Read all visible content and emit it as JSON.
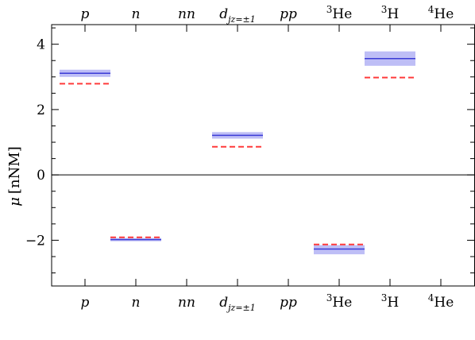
{
  "chart_data": {
    "type": "scatter",
    "title": "",
    "xlabel": "",
    "ylabel": {
      "symbol": "μ",
      "unit": "[nNM]"
    },
    "ylim": [
      -3.4,
      4.6
    ],
    "yticks": [
      4,
      2,
      0,
      -2
    ],
    "ytick_labels": [
      "4",
      "2",
      "0",
      "−2"
    ],
    "zero_line": true,
    "grid": false,
    "legend": "none",
    "categories": [
      {
        "key": "p",
        "label": "p"
      },
      {
        "key": "n",
        "label": "n"
      },
      {
        "key": "nn",
        "label": "nn"
      },
      {
        "key": "d",
        "label": "d",
        "subscript": "jz=±1"
      },
      {
        "key": "pp",
        "label": "pp"
      },
      {
        "key": "3He",
        "label": "He",
        "superscript": "3"
      },
      {
        "key": "3H",
        "label": "H",
        "superscript": "3"
      },
      {
        "key": "4He",
        "label": "He",
        "superscript": "4"
      }
    ],
    "series": [
      {
        "style": "solid blue line with shaded uncertainty band",
        "color": "#3b3bd6",
        "band_color": "#b3b3f5",
        "points": [
          {
            "category": "p",
            "value": 3.11,
            "low": 3.0,
            "high": 3.22
          },
          {
            "category": "n",
            "value": -1.98,
            "low": -2.03,
            "high": -1.93
          },
          {
            "category": "d",
            "value": 1.21,
            "low": 1.11,
            "high": 1.31
          },
          {
            "category": "3He",
            "value": -2.27,
            "low": -2.43,
            "high": -2.15
          },
          {
            "category": "3H",
            "value": 3.56,
            "low": 3.34,
            "high": 3.78
          }
        ]
      },
      {
        "style": "dashed red line",
        "color": "#ff3b3b",
        "points": [
          {
            "category": "p",
            "value": 2.79
          },
          {
            "category": "n",
            "value": -1.91
          },
          {
            "category": "d",
            "value": 0.86
          },
          {
            "category": "3He",
            "value": -2.13
          },
          {
            "category": "3H",
            "value": 2.98
          }
        ]
      }
    ]
  }
}
